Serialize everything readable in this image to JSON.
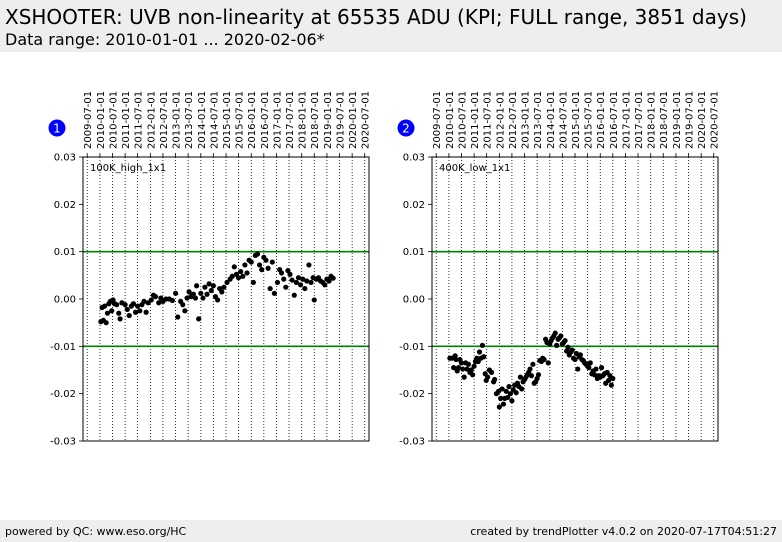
{
  "header": {
    "title": "XSHOOTER: UVB non-linearity at 65535 ADU (KPI; FULL range, 3851 days)",
    "subtitle": "Data range: 2010-01-01 ... 2020-02-06*"
  },
  "footer": {
    "left": "powered by QC: www.eso.org/HC",
    "right": "created by trendPlotter v4.0.2 on 2020-07-17T04:51:27"
  },
  "colors": {
    "threshold_line": "#008000",
    "point": "#000000",
    "badge": "#0000ff",
    "header_bg": "#eeeeee"
  },
  "chart_data": [
    {
      "type": "scatter",
      "panel_number": "1",
      "label": "100K_high_1x1",
      "x_ticks": [
        "2009-07-01",
        "2010-01-01",
        "2010-07-01",
        "2011-01-01",
        "2011-07-01",
        "2012-01-01",
        "2012-07-01",
        "2013-01-01",
        "2013-07-01",
        "2014-01-01",
        "2014-07-01",
        "2015-01-01",
        "2015-07-01",
        "2016-01-01",
        "2016-07-01",
        "2017-01-01",
        "2017-07-01",
        "2018-01-01",
        "2018-07-01",
        "2019-01-01",
        "2019-07-01",
        "2020-01-01",
        "2020-07-01"
      ],
      "y_ticks": [
        "0.03",
        "0.02",
        "0.01",
        "0.00",
        "-0.01",
        "-0.02",
        "-0.03"
      ],
      "ylim": [
        -0.03,
        0.03
      ],
      "xlim": [
        "2009-05-01",
        "2020-09-01"
      ],
      "thresholds": [
        0.01,
        -0.01
      ],
      "grid": "vertical dotted at x ticks",
      "points": [
        [
          "2010-01-15",
          -0.0048
        ],
        [
          "2010-02-01",
          -0.0018
        ],
        [
          "2010-02-20",
          -0.0045
        ],
        [
          "2010-03-10",
          -0.0015
        ],
        [
          "2010-04-01",
          -0.005
        ],
        [
          "2010-04-20",
          -0.003
        ],
        [
          "2010-05-10",
          -0.001
        ],
        [
          "2010-06-01",
          -0.0005
        ],
        [
          "2010-06-20",
          -0.0025
        ],
        [
          "2010-07-10",
          -0.0002
        ],
        [
          "2010-08-01",
          -0.001
        ],
        [
          "2010-09-01",
          -0.0012
        ],
        [
          "2010-10-01",
          -0.003
        ],
        [
          "2010-10-20",
          -0.0042
        ],
        [
          "2010-11-15",
          -0.0008
        ],
        [
          "2011-01-01",
          -0.0012
        ],
        [
          "2011-02-01",
          -0.0022
        ],
        [
          "2011-03-01",
          -0.0035
        ],
        [
          "2011-04-01",
          -0.0015
        ],
        [
          "2011-05-01",
          -0.001
        ],
        [
          "2011-06-01",
          -0.0028
        ],
        [
          "2011-07-01",
          -0.0015
        ],
        [
          "2011-08-01",
          -0.0025
        ],
        [
          "2011-09-01",
          -0.0012
        ],
        [
          "2011-10-01",
          -0.0005
        ],
        [
          "2011-11-01",
          -0.0028
        ],
        [
          "2011-12-01",
          -0.0008
        ],
        [
          "2012-01-15",
          -0.0002
        ],
        [
          "2012-02-15",
          0.0008
        ],
        [
          "2012-03-15",
          0.0005
        ],
        [
          "2012-05-01",
          -0.0008
        ],
        [
          "2012-06-01",
          0.0002
        ],
        [
          "2012-07-01",
          -0.0005
        ],
        [
          "2012-08-15",
          0.0
        ],
        [
          "2012-10-01",
          0.0
        ],
        [
          "2012-11-15",
          -0.0003
        ],
        [
          "2013-01-01",
          0.0012
        ],
        [
          "2013-02-01",
          -0.0038
        ],
        [
          "2013-03-15",
          -0.0005
        ],
        [
          "2013-04-15",
          -0.0012
        ],
        [
          "2013-05-15",
          -0.0025
        ],
        [
          "2013-06-15",
          0.0002
        ],
        [
          "2013-07-15",
          0.0015
        ],
        [
          "2013-08-15",
          0.0005
        ],
        [
          "2013-09-15",
          0.001
        ],
        [
          "2013-10-15",
          0.0002
        ],
        [
          "2013-11-01",
          0.0028
        ],
        [
          "2013-12-01",
          -0.0042
        ],
        [
          "2014-01-01",
          0.0012
        ],
        [
          "2014-02-01",
          0.0002
        ],
        [
          "2014-03-01",
          0.0025
        ],
        [
          "2014-04-01",
          0.001
        ],
        [
          "2014-05-01",
          0.0032
        ],
        [
          "2014-06-01",
          0.0018
        ],
        [
          "2014-07-01",
          0.0028
        ],
        [
          "2014-08-01",
          0.0005
        ],
        [
          "2014-09-01",
          -0.0002
        ],
        [
          "2014-10-01",
          0.0022
        ],
        [
          "2014-11-01",
          0.0015
        ],
        [
          "2014-12-01",
          0.0025
        ],
        [
          "2015-01-15",
          0.0035
        ],
        [
          "2015-03-01",
          0.0042
        ],
        [
          "2015-04-01",
          0.0048
        ],
        [
          "2015-05-01",
          0.0068
        ],
        [
          "2015-06-01",
          0.0052
        ],
        [
          "2015-07-01",
          0.0045
        ],
        [
          "2015-08-01",
          0.0058
        ],
        [
          "2015-09-01",
          0.0048
        ],
        [
          "2015-10-01",
          0.0072
        ],
        [
          "2015-11-01",
          0.0055
        ],
        [
          "2015-12-01",
          0.0082
        ],
        [
          "2016-01-01",
          0.0078
        ],
        [
          "2016-02-01",
          0.0035
        ],
        [
          "2016-03-01",
          0.0092
        ],
        [
          "2016-04-01",
          0.0095
        ],
        [
          "2016-05-01",
          0.0072
        ],
        [
          "2016-06-01",
          0.0062
        ],
        [
          "2016-07-01",
          0.0088
        ],
        [
          "2016-08-01",
          0.0082
        ],
        [
          "2016-09-01",
          0.0065
        ],
        [
          "2016-10-01",
          0.0022
        ],
        [
          "2016-11-01",
          0.0078
        ],
        [
          "2016-12-01",
          0.0012
        ],
        [
          "2017-01-15",
          0.0035
        ],
        [
          "2017-02-15",
          0.0062
        ],
        [
          "2017-03-15",
          0.0055
        ],
        [
          "2017-04-15",
          0.0042
        ],
        [
          "2017-05-15",
          0.0025
        ],
        [
          "2017-06-15",
          0.006
        ],
        [
          "2017-07-15",
          0.0052
        ],
        [
          "2017-08-15",
          0.004
        ],
        [
          "2017-09-15",
          0.0008
        ],
        [
          "2017-10-15",
          0.0035
        ],
        [
          "2017-11-15",
          0.0045
        ],
        [
          "2017-12-15",
          0.003
        ],
        [
          "2018-01-15",
          0.0042
        ],
        [
          "2018-02-15",
          0.0022
        ],
        [
          "2018-03-15",
          0.0038
        ],
        [
          "2018-04-15",
          0.0072
        ],
        [
          "2018-05-15",
          0.0035
        ],
        [
          "2018-06-15",
          0.0045
        ],
        [
          "2018-07-01",
          -0.0002
        ],
        [
          "2018-08-01",
          0.0042
        ],
        [
          "2018-09-01",
          0.0045
        ],
        [
          "2018-10-01",
          0.0038
        ],
        [
          "2018-11-01",
          0.0035
        ],
        [
          "2018-12-01",
          0.003
        ],
        [
          "2019-01-01",
          0.0042
        ],
        [
          "2019-02-01",
          0.0038
        ],
        [
          "2019-03-01",
          0.0048
        ],
        [
          "2019-04-01",
          0.0044
        ]
      ]
    },
    {
      "type": "scatter",
      "panel_number": "2",
      "label": "400K_low_1x1",
      "x_ticks": [
        "2009-07-01",
        "2010-01-01",
        "2010-07-01",
        "2011-01-01",
        "2011-07-01",
        "2012-01-01",
        "2012-07-01",
        "2013-01-01",
        "2013-07-01",
        "2014-01-01",
        "2014-07-01",
        "2015-01-01",
        "2015-07-01",
        "2016-01-01",
        "2016-07-01",
        "2017-01-01",
        "2017-07-01",
        "2018-01-01",
        "2018-07-01",
        "2019-01-01",
        "2019-07-01",
        "2020-01-01",
        "2020-07-01"
      ],
      "y_ticks": [
        "0.03",
        "0.02",
        "0.01",
        "0.00",
        "-0.01",
        "-0.02",
        "-0.03"
      ],
      "ylim": [
        -0.03,
        0.03
      ],
      "xlim": [
        "2009-05-01",
        "2020-09-01"
      ],
      "thresholds": [
        0.01,
        -0.01
      ],
      "grid": "vertical dotted at x ticks",
      "points": [
        [
          "2010-01-15",
          -0.0125
        ],
        [
          "2010-02-15",
          -0.0125
        ],
        [
          "2010-03-10",
          -0.0145
        ],
        [
          "2010-04-01",
          -0.012
        ],
        [
          "2010-04-15",
          -0.0128
        ],
        [
          "2010-05-01",
          -0.0152
        ],
        [
          "2010-05-20",
          -0.0145
        ],
        [
          "2010-06-10",
          -0.0128
        ],
        [
          "2010-07-01",
          -0.0135
        ],
        [
          "2010-07-20",
          -0.0148
        ],
        [
          "2010-08-10",
          -0.0165
        ],
        [
          "2010-09-01",
          -0.0135
        ],
        [
          "2010-09-20",
          -0.0148
        ],
        [
          "2010-10-10",
          -0.0138
        ],
        [
          "2010-11-01",
          -0.0155
        ],
        [
          "2010-11-20",
          -0.015
        ],
        [
          "2010-12-10",
          -0.016
        ],
        [
          "2011-01-01",
          -0.0142
        ],
        [
          "2011-01-20",
          -0.0132
        ],
        [
          "2011-02-10",
          -0.0125
        ],
        [
          "2011-03-01",
          -0.0132
        ],
        [
          "2011-03-20",
          -0.0112
        ],
        [
          "2011-04-10",
          -0.0125
        ],
        [
          "2011-05-01",
          -0.0098
        ],
        [
          "2011-05-20",
          -0.0122
        ],
        [
          "2011-06-10",
          -0.0158
        ],
        [
          "2011-06-25",
          -0.0172
        ],
        [
          "2011-07-15",
          -0.0165
        ],
        [
          "2011-08-10",
          -0.015
        ],
        [
          "2011-09-10",
          -0.0155
        ],
        [
          "2011-10-10",
          -0.0175
        ],
        [
          "2011-10-25",
          -0.017
        ],
        [
          "2011-11-20",
          -0.02
        ],
        [
          "2011-12-20",
          -0.0195
        ],
        [
          "2012-01-01",
          -0.0228
        ],
        [
          "2012-01-20",
          -0.021
        ],
        [
          "2012-02-10",
          -0.019
        ],
        [
          "2012-03-01",
          -0.0222
        ],
        [
          "2012-03-20",
          -0.021
        ],
        [
          "2012-04-10",
          -0.0195
        ],
        [
          "2012-05-01",
          -0.0208
        ],
        [
          "2012-05-20",
          -0.0185
        ],
        [
          "2012-06-10",
          -0.02
        ],
        [
          "2012-07-01",
          -0.0215
        ],
        [
          "2012-07-20",
          -0.0192
        ],
        [
          "2012-08-10",
          -0.0182
        ],
        [
          "2012-09-01",
          -0.0198
        ],
        [
          "2012-09-20",
          -0.0178
        ],
        [
          "2012-10-10",
          -0.0185
        ],
        [
          "2012-11-01",
          -0.0165
        ],
        [
          "2012-11-20",
          -0.019
        ],
        [
          "2012-12-10",
          -0.0175
        ],
        [
          "2013-01-01",
          -0.017
        ],
        [
          "2013-01-20",
          -0.0165
        ],
        [
          "2013-02-10",
          -0.016
        ],
        [
          "2013-03-01",
          -0.0155
        ],
        [
          "2013-03-20",
          -0.0148
        ],
        [
          "2013-04-10",
          -0.0162
        ],
        [
          "2013-05-01",
          -0.0138
        ],
        [
          "2013-05-20",
          -0.0178
        ],
        [
          "2013-06-10",
          -0.0175
        ],
        [
          "2013-07-01",
          -0.0168
        ],
        [
          "2013-07-20",
          -0.016
        ],
        [
          "2013-08-10",
          -0.013
        ],
        [
          "2013-09-01",
          -0.0132
        ],
        [
          "2013-09-20",
          -0.0125
        ],
        [
          "2013-10-10",
          -0.0128
        ],
        [
          "2013-11-01",
          -0.0085
        ],
        [
          "2013-11-20",
          -0.0092
        ],
        [
          "2013-12-10",
          -0.0135
        ],
        [
          "2014-01-01",
          -0.0095
        ],
        [
          "2014-01-20",
          -0.0088
        ],
        [
          "2014-02-10",
          -0.0082
        ],
        [
          "2014-03-01",
          -0.0078
        ],
        [
          "2014-03-20",
          -0.0072
        ],
        [
          "2014-04-10",
          -0.0098
        ],
        [
          "2014-05-01",
          -0.0085
        ],
        [
          "2014-05-20",
          -0.0082
        ],
        [
          "2014-06-10",
          -0.0078
        ],
        [
          "2014-07-01",
          -0.0095
        ],
        [
          "2014-07-20",
          -0.0092
        ],
        [
          "2014-08-10",
          -0.0088
        ],
        [
          "2014-09-01",
          -0.011
        ],
        [
          "2014-09-20",
          -0.0102
        ],
        [
          "2014-10-10",
          -0.0118
        ],
        [
          "2014-11-01",
          -0.0112
        ],
        [
          "2014-11-20",
          -0.0108
        ],
        [
          "2014-12-10",
          -0.0125
        ],
        [
          "2015-01-01",
          -0.0128
        ],
        [
          "2015-01-20",
          -0.0115
        ],
        [
          "2015-02-10",
          -0.0148
        ],
        [
          "2015-03-01",
          -0.0122
        ],
        [
          "2015-03-20",
          -0.0118
        ],
        [
          "2015-04-10",
          -0.0128
        ],
        [
          "2015-05-01",
          -0.013
        ],
        [
          "2015-05-20",
          -0.0135
        ],
        [
          "2015-06-10",
          -0.0138
        ],
        [
          "2015-07-01",
          -0.0142
        ],
        [
          "2015-07-20",
          -0.0145
        ],
        [
          "2015-08-10",
          -0.0135
        ],
        [
          "2015-09-01",
          -0.0158
        ],
        [
          "2015-09-20",
          -0.0152
        ],
        [
          "2015-10-10",
          -0.016
        ],
        [
          "2015-11-01",
          -0.0148
        ],
        [
          "2015-11-20",
          -0.0168
        ],
        [
          "2015-12-10",
          -0.0162
        ],
        [
          "2016-01-01",
          -0.0165
        ],
        [
          "2016-01-20",
          -0.0145
        ],
        [
          "2016-02-10",
          -0.0162
        ],
        [
          "2016-03-01",
          -0.0158
        ],
        [
          "2016-03-20",
          -0.0178
        ],
        [
          "2016-04-10",
          -0.0155
        ],
        [
          "2016-05-01",
          -0.0172
        ],
        [
          "2016-05-20",
          -0.0162
        ],
        [
          "2016-06-10",
          -0.0182
        ],
        [
          "2016-07-01",
          -0.0168
        ]
      ]
    }
  ]
}
